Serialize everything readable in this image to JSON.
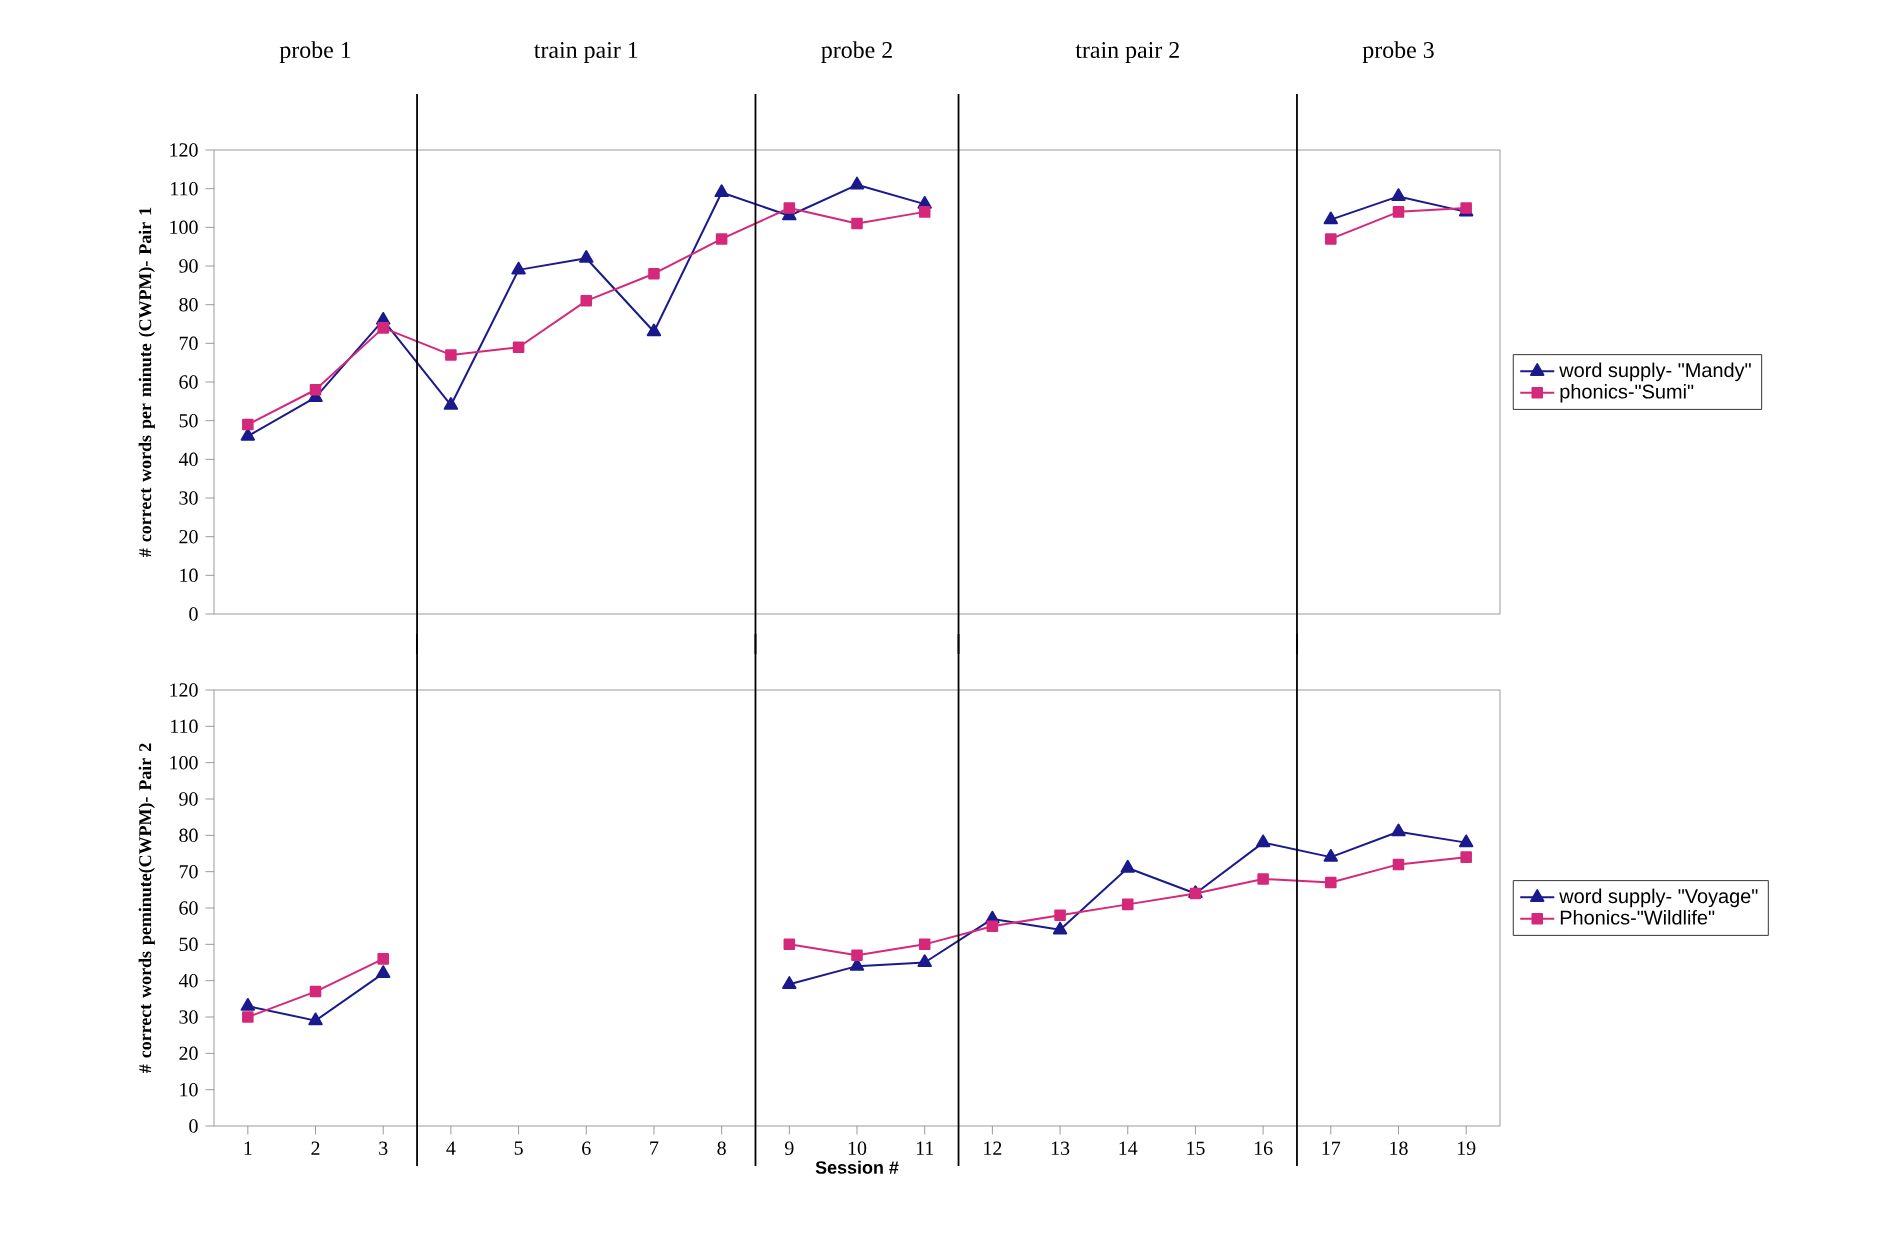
{
  "chart_data": [
    {
      "type": "line",
      "ylabel": "# correct words per minute (CWPM)- Pair 1",
      "x": [
        1,
        2,
        3,
        4,
        5,
        6,
        7,
        8,
        9,
        10,
        11,
        12,
        13,
        14,
        15,
        16,
        17,
        18,
        19
      ],
      "xlim": [
        0.5,
        19.5
      ],
      "xticks": [
        1,
        2,
        3,
        4,
        5,
        6,
        7,
        8,
        9,
        10,
        11,
        12,
        13,
        14,
        15,
        16,
        17,
        18,
        19
      ],
      "ylim": [
        0,
        120
      ],
      "yticks": [
        0,
        10,
        20,
        30,
        40,
        50,
        60,
        70,
        80,
        90,
        100,
        110,
        120
      ],
      "tick_labels": "y",
      "legend": "right",
      "annotations": [
        "probe 1",
        "train pair 1",
        "probe 2",
        "train pair 2",
        "probe 3"
      ],
      "ref_lines": [
        {
          "axis": "x",
          "value": 3.5,
          "color": "#000000"
        },
        {
          "axis": "x",
          "value": 8.5,
          "color": "#000000"
        },
        {
          "axis": "x",
          "value": 11.5,
          "color": "#000000"
        },
        {
          "axis": "x",
          "value": 16.5,
          "color": "#000000"
        }
      ],
      "series": [
        {
          "name": "word supply- \"Mandy\"",
          "color": "#1a1a8c",
          "marker": "triangle",
          "values": [
            46,
            56,
            76,
            54,
            89,
            92,
            73,
            109,
            103,
            111,
            106,
            null,
            null,
            null,
            null,
            null,
            102,
            108,
            104
          ]
        },
        {
          "name": "phonics-\"Sumi\"",
          "color": "#d4287a",
          "marker": "square",
          "values": [
            49,
            58,
            74,
            67,
            69,
            81,
            88,
            97,
            105,
            101,
            104,
            null,
            null,
            null,
            null,
            null,
            97,
            104,
            105
          ]
        }
      ]
    },
    {
      "type": "line",
      "ylabel": "# correct words peminute(CWPM)- Pair 2",
      "xlabel": "Session #",
      "x": [
        1,
        2,
        3,
        4,
        5,
        6,
        7,
        8,
        9,
        10,
        11,
        12,
        13,
        14,
        15,
        16,
        17,
        18,
        19
      ],
      "xlim": [
        0.5,
        19.5
      ],
      "xticks": [
        1,
        2,
        3,
        4,
        5,
        6,
        7,
        8,
        9,
        10,
        11,
        12,
        13,
        14,
        15,
        16,
        17,
        18,
        19
      ],
      "ylim": [
        0,
        120
      ],
      "yticks": [
        0,
        10,
        20,
        30,
        40,
        50,
        60,
        70,
        80,
        90,
        100,
        110,
        120
      ],
      "legend": "right",
      "ref_lines": [
        {
          "axis": "x",
          "value": 3.5,
          "color": "#000000"
        },
        {
          "axis": "x",
          "value": 8.5,
          "color": "#000000"
        },
        {
          "axis": "x",
          "value": 11.5,
          "color": "#000000"
        },
        {
          "axis": "x",
          "value": 16.5,
          "color": "#000000"
        }
      ],
      "series": [
        {
          "name": "word supply- \"Voyage\"",
          "color": "#1a1a8c",
          "marker": "triangle",
          "values": [
            33,
            29,
            42,
            null,
            null,
            null,
            null,
            null,
            39,
            44,
            45,
            57,
            54,
            71,
            64,
            78,
            74,
            81,
            78
          ]
        },
        {
          "name": "Phonics-\"Wildlife\"",
          "color": "#d4287a",
          "marker": "square",
          "values": [
            30,
            37,
            46,
            null,
            null,
            null,
            null,
            null,
            50,
            47,
            50,
            55,
            58,
            61,
            64,
            68,
            67,
            72,
            74
          ]
        }
      ]
    }
  ]
}
